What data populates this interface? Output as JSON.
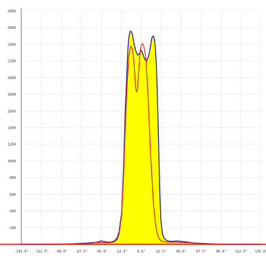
{
  "chart_data": {
    "type": "area",
    "title": "",
    "xlabel": "",
    "ylabel": "",
    "x_unit": "°",
    "xlim": [
      -135,
      135
    ],
    "ylim": [
      0,
      2800
    ],
    "x_ticks": [
      "-135.0°",
      "-112.5°",
      "-90.0°",
      "-67.5°",
      "-45.0°",
      "-22.5°",
      "0.0°",
      "22.5°",
      "45.0°",
      "67.5°",
      "90.0°",
      "112.5°",
      "135.0°"
    ],
    "y_ticks": [
      "200",
      "400",
      "600",
      "800",
      "1000",
      "1200",
      "1400",
      "1600",
      "1800",
      "2000",
      "2200",
      "2400",
      "2600",
      "2800"
    ],
    "grid": true,
    "legend": "none",
    "colors": {
      "fill": "#ffff00",
      "outline": "#1a1a99",
      "second_curve": "#dd2222",
      "baseline": "#ff0000",
      "grid": "#cccccc"
    },
    "series": [
      {
        "style": "filled",
        "x": [
          -135,
          -100,
          -80,
          -60,
          -50,
          -45,
          -40,
          -35,
          -30,
          -27,
          -25,
          -22,
          -20,
          -18,
          -16,
          -15,
          -14,
          -13,
          -12,
          -11,
          -10,
          -9,
          -8,
          -6,
          -4,
          -2,
          0,
          2,
          4,
          6,
          8,
          10,
          11,
          12,
          13,
          14,
          15,
          16,
          17,
          18,
          19,
          20,
          21,
          22,
          24,
          26,
          28,
          30,
          35,
          40,
          45,
          50,
          60,
          70,
          80,
          90,
          100,
          135
        ],
        "y": [
          0,
          0,
          5,
          15,
          25,
          40,
          30,
          25,
          40,
          80,
          150,
          380,
          900,
          1600,
          2100,
          2350,
          2480,
          2540,
          2560,
          2550,
          2520,
          2460,
          2400,
          2320,
          2270,
          2290,
          2330,
          2280,
          2220,
          2200,
          2250,
          2350,
          2420,
          2480,
          2500,
          2490,
          2450,
          2350,
          2150,
          1850,
          1450,
          1000,
          600,
          300,
          120,
          70,
          50,
          40,
          35,
          40,
          35,
          30,
          15,
          10,
          5,
          0,
          0,
          0
        ]
      },
      {
        "style": "line",
        "x": [
          -135,
          -100,
          -80,
          -60,
          -50,
          -40,
          -35,
          -30,
          -27,
          -25,
          -22,
          -20,
          -18,
          -16,
          -14,
          -12,
          -10,
          -8,
          -7,
          -6,
          -5,
          -4,
          -3,
          -2,
          -1,
          0,
          1,
          2,
          3,
          4,
          5,
          6,
          8,
          10,
          12,
          14,
          16,
          18,
          20,
          22,
          24,
          26,
          30,
          35,
          40,
          50,
          60,
          70,
          80,
          90,
          100,
          135
        ],
        "y": [
          0,
          0,
          5,
          10,
          20,
          20,
          20,
          30,
          60,
          120,
          350,
          800,
          1400,
          1900,
          2250,
          2380,
          2350,
          2150,
          2000,
          1850,
          1830,
          1900,
          2050,
          2200,
          2330,
          2390,
          2410,
          2400,
          2370,
          2320,
          2250,
          2100,
          1700,
          1200,
          800,
          450,
          250,
          130,
          70,
          45,
          35,
          30,
          25,
          25,
          25,
          20,
          15,
          10,
          5,
          0,
          0,
          0
        ]
      }
    ]
  }
}
